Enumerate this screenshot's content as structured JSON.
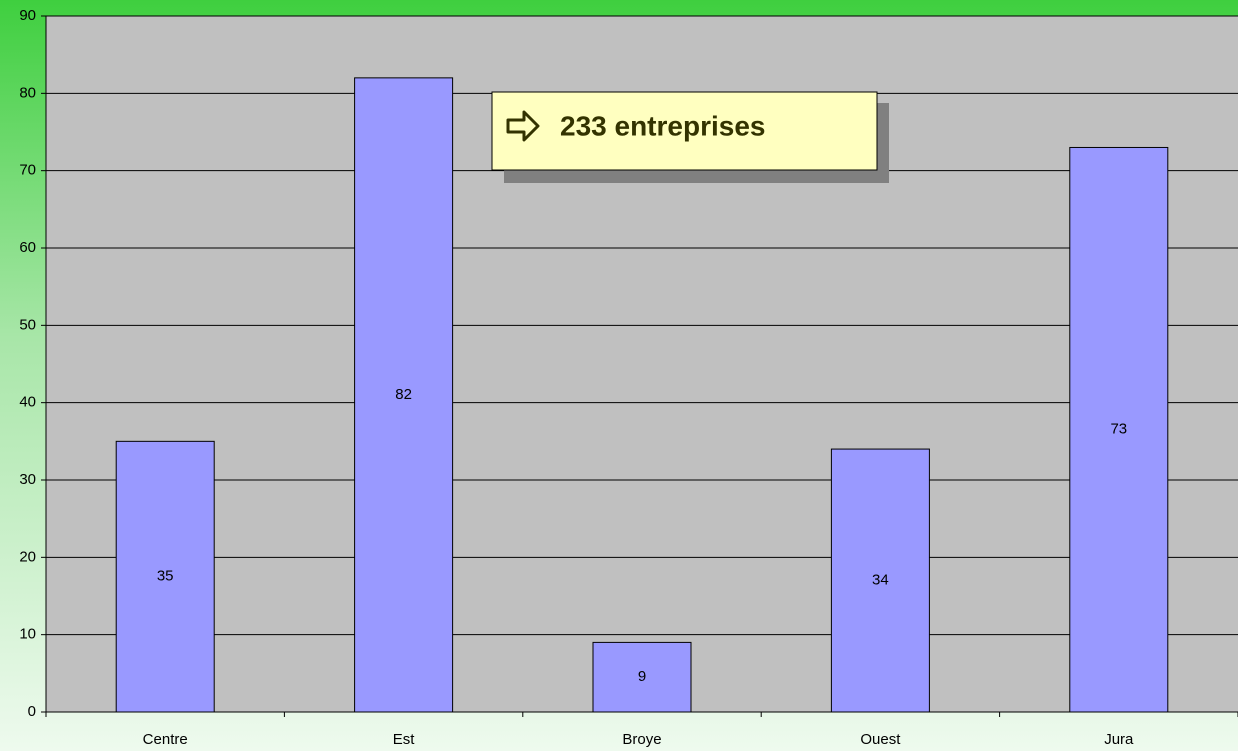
{
  "chart_data": {
    "type": "bar",
    "categories": [
      "Centre",
      "Est",
      "Broye",
      "Ouest",
      "Jura"
    ],
    "values": [
      35,
      82,
      9,
      34,
      73
    ],
    "color": "#9999ff",
    "ylim": [
      0,
      90
    ],
    "yticks": [
      0,
      10,
      20,
      30,
      40,
      50,
      60,
      70,
      80,
      90
    ],
    "grid": true,
    "annotation": "233 entreprises"
  }
}
